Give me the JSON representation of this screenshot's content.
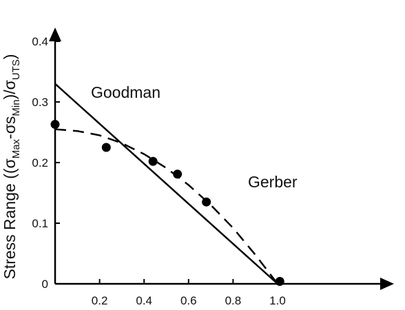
{
  "chart_data": {
    "type": "line",
    "title": "",
    "xlabel": "",
    "ylabel": {
      "prefix": "Stress Range ((",
      "sigma": "σ",
      "max_sub": "Max",
      "middle": "-σs",
      "min_sub": "Min",
      "close": ")/",
      "sigma2": "σ",
      "uts_sub": "UTS",
      "end": ")"
    },
    "xlim": [
      0,
      1.1
    ],
    "ylim": [
      0,
      0.42
    ],
    "x_ticks": [
      0.2,
      0.4,
      0.6,
      0.8,
      1.0
    ],
    "x_tick_labels": [
      "0.2",
      "0.4",
      "0.6",
      "0.8",
      "1.0"
    ],
    "y_ticks": [
      0,
      0.1,
      0.2,
      0.3,
      0.4
    ],
    "y_tick_labels": [
      "0",
      "0.1",
      "0.2",
      "0.3",
      "0.4"
    ],
    "grid": false,
    "series": [
      {
        "name": "Goodman",
        "style": "solid",
        "x": [
          0,
          1.0
        ],
        "y": [
          0.33,
          0
        ]
      },
      {
        "name": "Gerber",
        "style": "dashed",
        "x": [
          0,
          0.1,
          0.2,
          0.3,
          0.4,
          0.5,
          0.6,
          0.7,
          0.8,
          0.9,
          1.0
        ],
        "y": [
          0.255,
          0.252,
          0.245,
          0.232,
          0.214,
          0.191,
          0.163,
          0.13,
          0.092,
          0.048,
          0
        ]
      }
    ],
    "points": {
      "x": [
        0.0,
        0.23,
        0.44,
        0.55,
        0.68,
        1.01
      ],
      "y": [
        0.263,
        0.225,
        0.202,
        0.181,
        0.135,
        0.004
      ]
    },
    "series_labels": [
      "Goodman",
      "Gerber"
    ],
    "colors": {
      "line": "#000000",
      "marker": "#000000"
    }
  }
}
